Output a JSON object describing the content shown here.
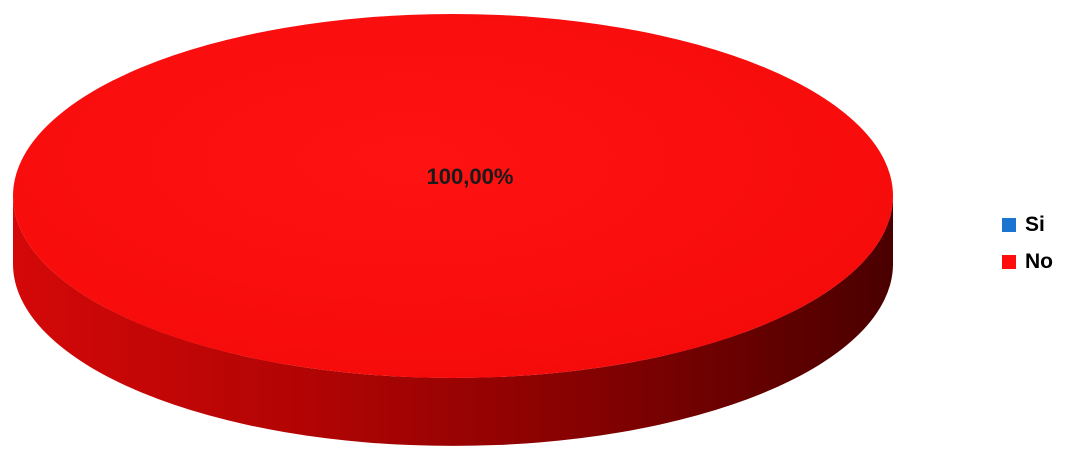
{
  "chart_data": {
    "type": "pie",
    "title": "",
    "categories": [
      "Si",
      "No"
    ],
    "values": [
      0,
      100
    ],
    "data_labels": [
      "",
      "100,00%"
    ],
    "colors": [
      "#1b75d0",
      "#ff0d0d"
    ],
    "legend_position": "right"
  }
}
